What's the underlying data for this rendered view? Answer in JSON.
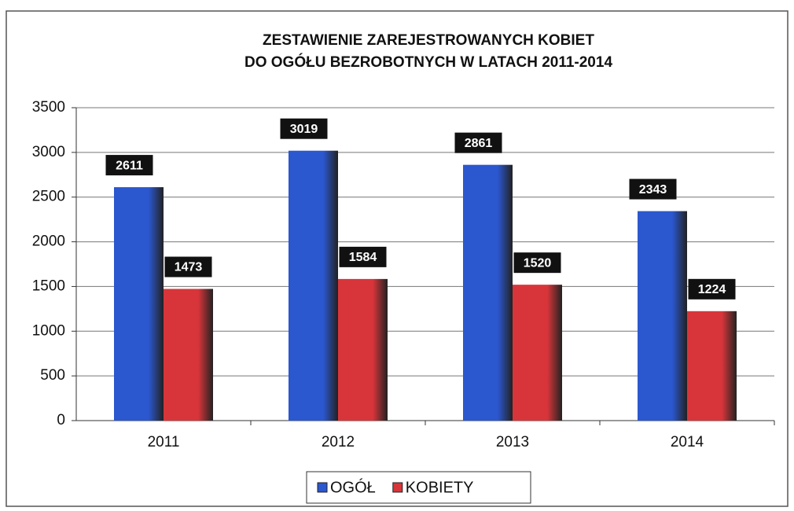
{
  "chart_data": {
    "type": "bar",
    "title": [
      "ZESTAWIENIE  ZAREJESTROWANYCH  KOBIET",
      "DO OGÓŁU BEZROBOTNYCH  W LATACH  2011-2014"
    ],
    "categories": [
      "2011",
      "2012",
      "2013",
      "2014"
    ],
    "series": [
      {
        "name": "OGÓŁ",
        "color": "#2b57cf",
        "values": [
          2611,
          3019,
          2861,
          2343
        ]
      },
      {
        "name": "KOBIETY",
        "color": "#d8353a",
        "values": [
          1473,
          1584,
          1520,
          1224
        ]
      }
    ],
    "ylim": [
      0,
      3500
    ],
    "yticks": [
      0,
      500,
      1000,
      1500,
      2000,
      2500,
      3000,
      3500
    ],
    "grid": true,
    "legend": "bottom"
  }
}
